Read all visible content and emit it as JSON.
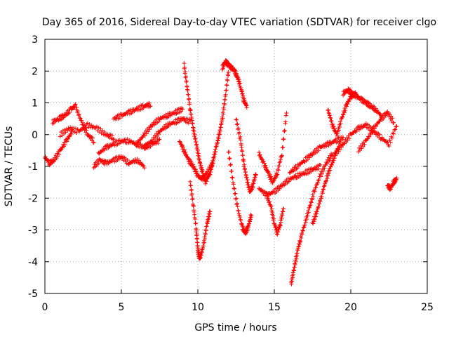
{
  "chart_data": {
    "type": "scatter",
    "title": "Day 365 of 2016, Sidereal Day-to-day VTEC variation (SDTVAR) for receiver clgo",
    "xlabel": "GPS time / hours",
    "ylabel": "SDTVAR / TECUs",
    "xlim": [
      0,
      25
    ],
    "ylim": [
      -5,
      3
    ],
    "xticks": [
      0,
      5,
      10,
      15,
      20,
      25
    ],
    "yticks": [
      -5,
      -4,
      -3,
      -2,
      -1,
      0,
      1,
      2,
      3
    ],
    "xtick_labels": [
      "0",
      "5",
      "10",
      "15",
      "20",
      "25"
    ],
    "ytick_labels": [
      "-5",
      "-4",
      "-3",
      "-2",
      "-1",
      "0",
      "1",
      "2",
      "3"
    ],
    "grid": true,
    "marker": "+",
    "color": "#ff0000",
    "series": [
      {
        "name": "track-01",
        "x": [
          0.0,
          0.3,
          0.6,
          1.0,
          1.4,
          1.8
        ],
        "y": [
          -0.7,
          -0.9,
          -0.8,
          -0.5,
          -0.2,
          0.1
        ]
      },
      {
        "name": "track-02",
        "x": [
          0.5,
          0.9,
          1.3,
          1.7,
          2.0,
          2.4,
          2.8,
          3.2
        ],
        "y": [
          0.4,
          0.5,
          0.6,
          0.8,
          0.9,
          0.4,
          0.0,
          -0.2
        ]
      },
      {
        "name": "track-03",
        "x": [
          1.0,
          1.6,
          2.2,
          2.8,
          3.4,
          4.0,
          4.5
        ],
        "y": [
          0.0,
          0.2,
          0.1,
          0.3,
          0.2,
          0.0,
          -0.1
        ]
      },
      {
        "name": "track-04",
        "x": [
          3.2,
          3.6,
          4.0,
          4.5,
          5.0,
          5.5,
          6.0,
          6.5
        ],
        "y": [
          -1.0,
          -0.8,
          -0.9,
          -0.8,
          -0.7,
          -0.9,
          -0.8,
          -1.0
        ]
      },
      {
        "name": "track-05",
        "x": [
          4.5,
          5.0,
          5.5,
          6.0,
          6.5,
          6.9
        ],
        "y": [
          0.5,
          0.6,
          0.7,
          0.8,
          0.9,
          0.95
        ]
      },
      {
        "name": "track-06",
        "x": [
          3.5,
          4.0,
          4.5,
          5.0,
          5.5,
          6.0,
          6.5,
          7.0,
          7.5
        ],
        "y": [
          -0.6,
          -0.4,
          -0.3,
          -0.2,
          -0.2,
          -0.3,
          -0.4,
          -0.3,
          -0.2
        ]
      },
      {
        "name": "track-07",
        "x": [
          6.0,
          6.5,
          7.0,
          7.5,
          8.0,
          8.5,
          9.0
        ],
        "y": [
          -0.3,
          0.0,
          0.3,
          0.5,
          0.6,
          0.7,
          0.8
        ]
      },
      {
        "name": "track-08",
        "x": [
          6.5,
          7.0,
          7.5,
          8.0,
          8.5,
          9.0,
          9.5
        ],
        "y": [
          -0.4,
          -0.2,
          0.1,
          0.3,
          0.4,
          0.5,
          0.4
        ]
      },
      {
        "name": "track-09",
        "x": [
          9.1,
          9.3,
          9.5,
          9.7,
          9.9,
          10.1,
          10.3,
          10.5
        ],
        "y": [
          2.2,
          1.5,
          0.8,
          0.2,
          -0.3,
          -0.8,
          -1.2,
          -1.5
        ]
      },
      {
        "name": "track-10",
        "x": [
          9.5,
          9.7,
          9.9,
          10.0,
          10.1,
          10.2,
          10.4,
          10.6,
          10.8
        ],
        "y": [
          -1.5,
          -2.2,
          -3.0,
          -3.6,
          -3.9,
          -3.8,
          -3.4,
          -2.8,
          -2.4
        ]
      },
      {
        "name": "track-11",
        "x": [
          8.8,
          9.1,
          9.4,
          9.7,
          10.0,
          10.3,
          10.6,
          11.0
        ],
        "y": [
          -0.2,
          -0.5,
          -0.8,
          -1.0,
          -1.3,
          -1.4,
          -1.2,
          -0.9
        ]
      },
      {
        "name": "track-12",
        "x": [
          10.5,
          10.8,
          11.0,
          11.2,
          11.4,
          11.6,
          11.8,
          12.0
        ],
        "y": [
          -1.5,
          -1.2,
          -0.8,
          -0.4,
          0.0,
          0.5,
          1.2,
          2.0
        ]
      },
      {
        "name": "track-13",
        "x": [
          11.6,
          11.8,
          12.0,
          12.2,
          12.4,
          12.6,
          12.8,
          13.0,
          13.2
        ],
        "y": [
          2.1,
          2.3,
          2.2,
          2.1,
          2.0,
          1.8,
          1.5,
          1.1,
          0.9
        ]
      },
      {
        "name": "track-14",
        "x": [
          12.0,
          12.3,
          12.6,
          12.9,
          13.1,
          13.3,
          13.5
        ],
        "y": [
          -0.5,
          -1.5,
          -2.3,
          -2.9,
          -3.1,
          -2.9,
          -2.5
        ]
      },
      {
        "name": "track-15",
        "x": [
          12.5,
          12.8,
          13.0,
          13.2,
          13.4,
          13.6,
          13.8
        ],
        "y": [
          0.5,
          -0.2,
          -0.9,
          -1.4,
          -1.8,
          -1.6,
          -1.2
        ]
      },
      {
        "name": "track-16",
        "x": [
          14.0,
          14.5,
          15.0,
          15.5,
          16.0,
          16.5,
          17.0,
          17.5,
          18.0
        ],
        "y": [
          -1.7,
          -1.9,
          -1.8,
          -1.6,
          -1.4,
          -1.3,
          -1.2,
          -1.1,
          -1.0
        ]
      },
      {
        "name": "track-17",
        "x": [
          14.0,
          14.3,
          14.6,
          14.9,
          15.2,
          15.5,
          15.8
        ],
        "y": [
          -0.6,
          -0.9,
          -1.2,
          -1.5,
          -1.2,
          -0.6,
          0.7
        ]
      },
      {
        "name": "track-18",
        "x": [
          14.5,
          14.8,
          15.0,
          15.2,
          15.4,
          15.6
        ],
        "y": [
          -1.9,
          -2.3,
          -2.8,
          -3.1,
          -2.8,
          -2.3
        ]
      },
      {
        "name": "track-19",
        "x": [
          16.1,
          16.3,
          16.5,
          16.7,
          17.0,
          17.3,
          17.6,
          18.0,
          18.4,
          18.8
        ],
        "y": [
          -4.7,
          -4.2,
          -3.7,
          -3.3,
          -2.8,
          -2.3,
          -1.8,
          -1.3,
          -0.9,
          -0.6
        ]
      },
      {
        "name": "track-20",
        "x": [
          17.5,
          17.8,
          18.1,
          18.4,
          18.7,
          19.0,
          19.3
        ],
        "y": [
          -2.8,
          -2.4,
          -1.9,
          -1.4,
          -1.0,
          -0.6,
          -0.3
        ]
      },
      {
        "name": "track-21",
        "x": [
          16.0,
          16.5,
          17.0,
          17.5,
          18.0,
          18.5,
          19.0,
          19.5
        ],
        "y": [
          -1.2,
          -1.0,
          -0.8,
          -0.6,
          -0.4,
          -0.3,
          -0.2,
          -0.1
        ]
      },
      {
        "name": "track-22",
        "x": [
          18.5,
          18.8,
          19.1,
          19.4,
          19.7,
          20.0,
          20.3
        ],
        "y": [
          0.8,
          0.3,
          0.0,
          0.5,
          0.9,
          1.2,
          1.3
        ]
      },
      {
        "name": "track-23",
        "x": [
          19.5,
          19.8,
          20.1,
          20.4,
          20.7,
          21.0,
          21.3,
          21.6,
          22.0
        ],
        "y": [
          1.3,
          1.4,
          1.3,
          1.2,
          1.1,
          1.0,
          0.9,
          0.8,
          0.6
        ]
      },
      {
        "name": "track-24",
        "x": [
          19.0,
          19.5,
          20.0,
          20.5,
          21.0,
          21.5,
          22.0,
          22.5,
          23.0
        ],
        "y": [
          -0.6,
          -0.3,
          0.0,
          0.2,
          0.3,
          0.1,
          -0.1,
          -0.3,
          0.3
        ]
      },
      {
        "name": "track-25",
        "x": [
          20.5,
          21.0,
          21.5,
          22.0,
          22.4,
          22.8
        ],
        "y": [
          -0.5,
          -0.2,
          0.2,
          0.5,
          0.7,
          0.4
        ]
      },
      {
        "name": "track-26",
        "x": [
          22.4,
          22.6,
          22.8,
          23.0
        ],
        "y": [
          -1.6,
          -1.7,
          -1.5,
          -1.4
        ]
      }
    ]
  }
}
